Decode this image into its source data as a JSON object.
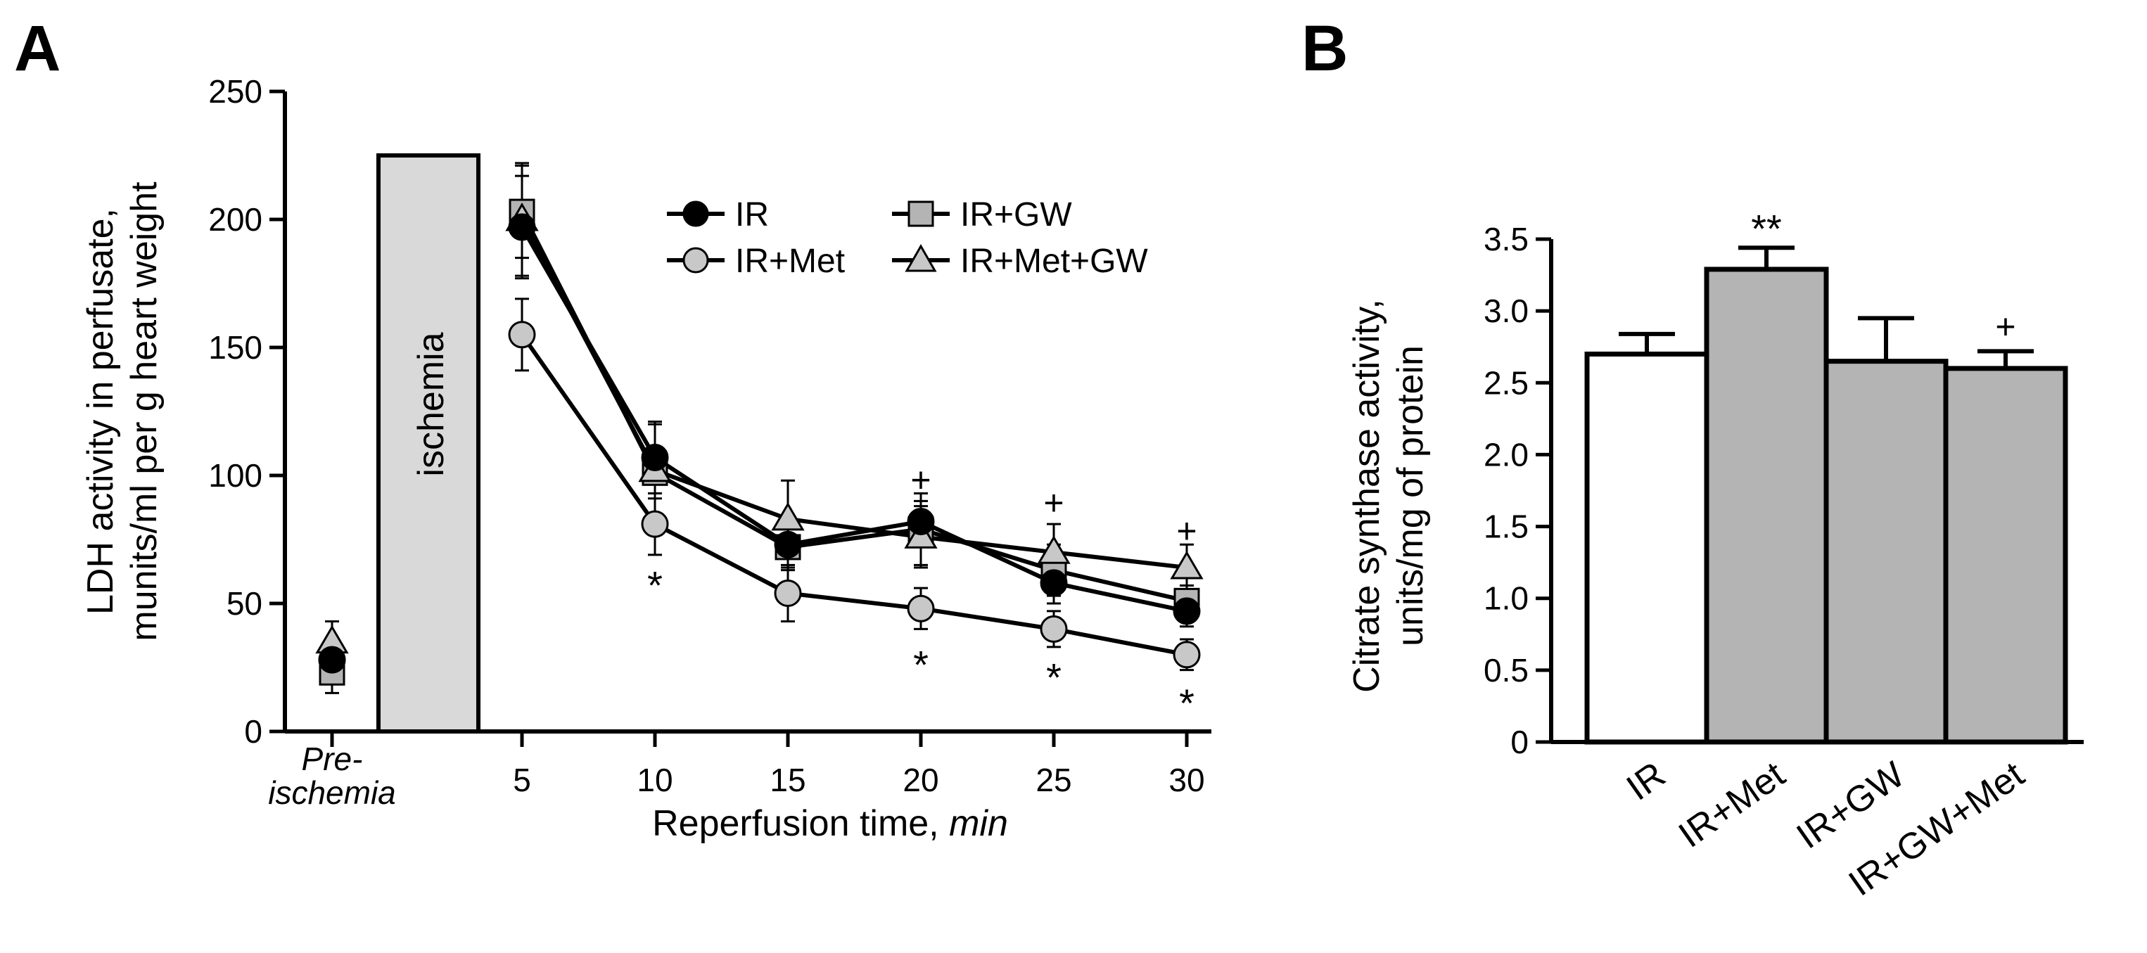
{
  "colors": {
    "ir": "#000000",
    "ir_met": "#c8c8c8",
    "ir_gw": "#b4b4b4",
    "ir_met_gw": "#c8c8c8",
    "ischemia_box": "#d9d9d9",
    "bar_ir": "#ffffff",
    "bar_gray": "#b4b4b4"
  },
  "chart_data": [
    {
      "panel": "A",
      "type": "line",
      "xlabel_prefix": "Reperfusion time, ",
      "xlabel_unit": "min",
      "ylabel_line1": "LDH activity in perfusate,",
      "ylabel_line2": "munits/ml per g heart weight",
      "ylim": [
        0,
        250
      ],
      "yticks": [
        "0",
        "50",
        "100",
        "150",
        "200",
        "250"
      ],
      "xticks": [
        "5",
        "10",
        "15",
        "20",
        "25",
        "30"
      ],
      "pre_label_line1": "Pre-",
      "pre_label_line2": "ischemia",
      "ischemia_label": "ischemia",
      "ischemia_height": 225,
      "x": [
        5,
        10,
        15,
        20,
        25,
        30
      ],
      "series": [
        {
          "name": "IR",
          "marker": "circle-black",
          "pre": 28,
          "pre_err": 5,
          "values": [
            197,
            107,
            73,
            82,
            58,
            47
          ],
          "errors": [
            20,
            14,
            10,
            8,
            8,
            6
          ]
        },
        {
          "name": "IR+Met",
          "marker": "circle-gray",
          "pre": 28,
          "pre_err": 5,
          "values": [
            155,
            81,
            54,
            48,
            40,
            30
          ],
          "errors": [
            14,
            12,
            11,
            8,
            7,
            6
          ]
        },
        {
          "name": "IR+GW",
          "marker": "square",
          "pre": 23,
          "pre_err": 8,
          "values": [
            203,
            101,
            72,
            79,
            63,
            51
          ],
          "errors": [
            18,
            10,
            8,
            14,
            10,
            6
          ]
        },
        {
          "name": "IR+Met+GW",
          "marker": "triangle",
          "pre": 35,
          "pre_err": 8,
          "values": [
            200,
            102,
            83,
            76,
            70,
            64
          ],
          "errors": [
            22,
            18,
            15,
            12,
            11,
            9
          ]
        }
      ],
      "annotations": [
        {
          "x": 10,
          "y": 60,
          "text": "*"
        },
        {
          "x": 20,
          "y": 98,
          "text": "+"
        },
        {
          "x": 20,
          "y": 29,
          "text": "*"
        },
        {
          "x": 25,
          "y": 89,
          "text": "+"
        },
        {
          "x": 25,
          "y": 24,
          "text": "*"
        },
        {
          "x": 30,
          "y": 78,
          "text": "+"
        },
        {
          "x": 30,
          "y": 14,
          "text": "*"
        }
      ]
    },
    {
      "panel": "B",
      "type": "bar",
      "ylabel_line1": "Citrate synthase activity,",
      "ylabel_line2": "units/mg of protein",
      "ylim": [
        0,
        3.5
      ],
      "yticks": [
        "0",
        "0.5",
        "1.0",
        "1.5",
        "2.0",
        "2.5",
        "3.0",
        "3.5"
      ],
      "categories": [
        "IR",
        "IR+Met",
        "IR+GW",
        "IR+GW+Met"
      ],
      "values": [
        2.7,
        3.29,
        2.65,
        2.6
      ],
      "errors": [
        0.14,
        0.15,
        0.3,
        0.12
      ],
      "annotations": [
        {
          "category": "IR+Met",
          "text": "**"
        },
        {
          "category": "IR+GW+Met",
          "text": "+"
        }
      ]
    }
  ]
}
